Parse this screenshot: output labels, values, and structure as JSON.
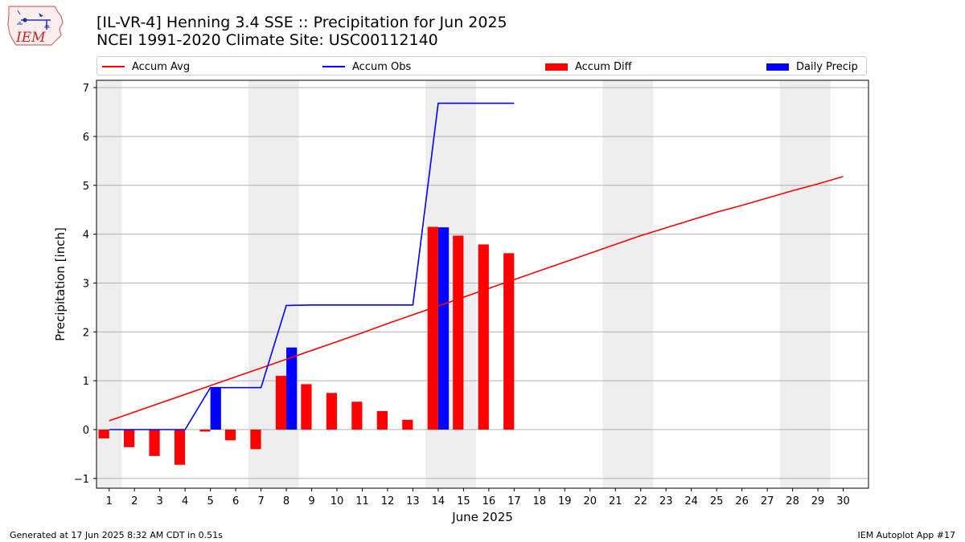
{
  "title_line1": "[IL-VR-4] Henning 3.4 SSE :: Precipitation for Jun 2025",
  "title_line2": "NCEI 1991-2020 Climate Site: USC00112140",
  "logo_text": "IEM",
  "legend": [
    {
      "label": "Accum Avg",
      "color": "#ff0000",
      "kind": "line"
    },
    {
      "label": "Accum Obs",
      "color": "#0000ff",
      "kind": "line"
    },
    {
      "label": "Accum Diff",
      "color": "#ff0000",
      "kind": "bar"
    },
    {
      "label": "Daily Precip",
      "color": "#0000ff",
      "kind": "bar"
    }
  ],
  "footer_left": "Generated at 17 Jun 2025 8:32 AM CDT in 0.51s",
  "footer_right": "IEM Autoplot App #17",
  "chart_data": {
    "type": "bar",
    "xlabel": "June 2025",
    "ylabel": "Precipitation [inch]",
    "xlim": [
      0.5,
      31
    ],
    "ylim": [
      -1.2,
      7.15
    ],
    "yticks": [
      -1,
      0,
      1,
      2,
      3,
      4,
      5,
      6,
      7
    ],
    "days": [
      1,
      2,
      3,
      4,
      5,
      6,
      7,
      8,
      9,
      10,
      11,
      12,
      13,
      14,
      15,
      16,
      17,
      18,
      19,
      20,
      21,
      22,
      23,
      24,
      25,
      26,
      27,
      28,
      29,
      30
    ],
    "weekend_shading": [
      [
        0.5,
        1.5
      ],
      [
        6.5,
        8.5
      ],
      [
        13.5,
        15.5
      ],
      [
        20.5,
        22.5
      ],
      [
        27.5,
        29.5
      ]
    ],
    "grid": "y",
    "legend_position": "top",
    "series": [
      {
        "name": "Accum Avg",
        "type": "line",
        "color": "#ff0000",
        "values": [
          0.18,
          0.36,
          0.54,
          0.72,
          0.9,
          1.08,
          1.26,
          1.44,
          1.62,
          1.8,
          1.98,
          2.17,
          2.35,
          2.53,
          2.71,
          2.89,
          3.07,
          3.25,
          3.43,
          3.61,
          3.79,
          3.97,
          4.13,
          4.29,
          4.45,
          4.59,
          4.74,
          4.89,
          5.03,
          5.18
        ]
      },
      {
        "name": "Accum Obs",
        "type": "line",
        "color": "#0000ff",
        "values": [
          0,
          0,
          0,
          0,
          0.86,
          0.86,
          0.86,
          2.54,
          2.55,
          2.55,
          2.55,
          2.55,
          2.55,
          6.68,
          6.68,
          6.68,
          6.68
        ]
      },
      {
        "name": "Accum Diff",
        "type": "bar",
        "color": "#ff0000",
        "values": [
          -0.18,
          -0.36,
          -0.54,
          -0.72,
          -0.04,
          -0.22,
          -0.4,
          1.1,
          0.93,
          0.75,
          0.57,
          0.38,
          0.2,
          4.15,
          3.97,
          3.79,
          3.61
        ]
      },
      {
        "name": "Daily Precip",
        "type": "bar",
        "color": "#0000ff",
        "values": [
          0,
          0,
          0,
          0,
          0.86,
          0,
          0,
          1.68,
          0,
          0,
          0,
          0,
          0,
          4.14,
          0,
          0,
          0
        ]
      }
    ]
  }
}
